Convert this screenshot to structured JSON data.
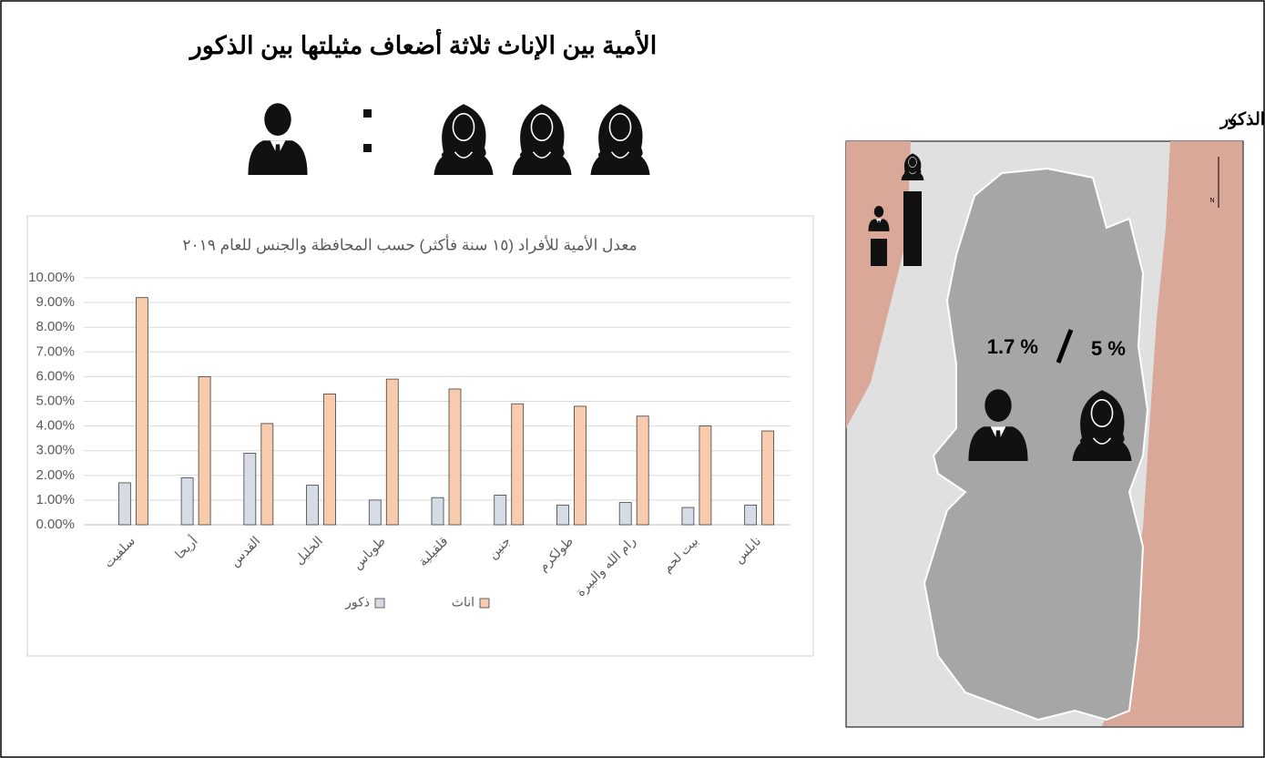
{
  "header": {
    "title": "الأمية بين الإناث ثلاثة أضعاف مثيلتها بين الذكور"
  },
  "map": {
    "title": "نسبة أمية الإناث مقارنة مع الذكور",
    "male_rate": "1.7 %",
    "female_rate": "5 %",
    "north": "N"
  },
  "chart_data": {
    "type": "bar",
    "title": "معدل الأمية للأفراد (١٥ سنة فأكثر) حسب المحافظة والجنس للعام ٢٠١٩",
    "categories": [
      "سلفيت",
      "أريحا",
      "القدس",
      "الخليل",
      "طوباس",
      "قلقيلية",
      "جنين",
      "طولكرم",
      "رام الله والبيرة",
      "بيت لحم",
      "نابلس"
    ],
    "series": [
      {
        "name": "ذكور",
        "color": "#d6dce5",
        "values": [
          1.7,
          1.9,
          2.9,
          1.6,
          1.0,
          1.1,
          1.2,
          0.8,
          0.9,
          0.7,
          0.8
        ]
      },
      {
        "name": "اناث",
        "color": "#f8cbad",
        "values": [
          9.2,
          6.0,
          4.1,
          5.3,
          5.9,
          5.5,
          4.9,
          4.8,
          4.4,
          4.0,
          3.8
        ]
      }
    ],
    "ylim": [
      0,
      10
    ],
    "yticks": [
      {
        "value": 0,
        "label": "0.00%"
      },
      {
        "value": 1,
        "label": "1.00%"
      },
      {
        "value": 2,
        "label": "2.00%"
      },
      {
        "value": 3,
        "label": "3.00%"
      },
      {
        "value": 4,
        "label": "4.00%"
      },
      {
        "value": 5,
        "label": "5.00%"
      },
      {
        "value": 6,
        "label": "6.00%"
      },
      {
        "value": 7,
        "label": "7.00%"
      },
      {
        "value": 8,
        "label": "8.00%"
      },
      {
        "value": 9,
        "label": "9.00%"
      },
      {
        "value": 10,
        "label": "10.00%"
      }
    ],
    "grid": true,
    "legend": "bottom"
  }
}
